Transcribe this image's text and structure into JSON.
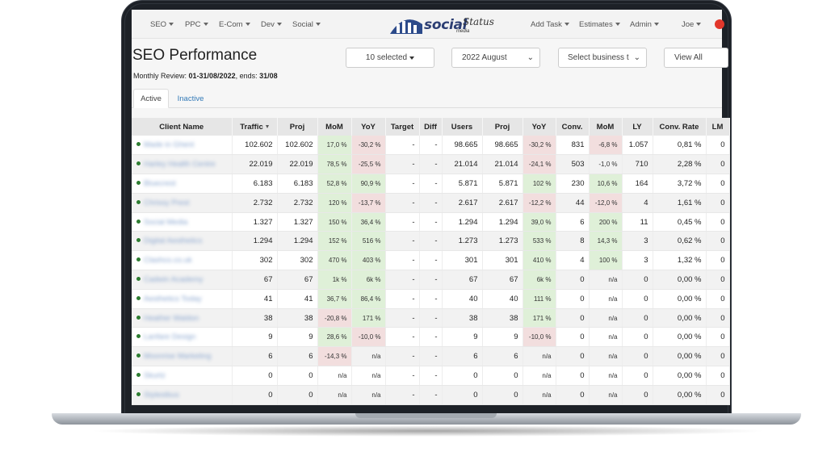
{
  "nav": {
    "left": [
      {
        "label": "SEO"
      },
      {
        "label": "PPC"
      },
      {
        "label": "E-Com"
      },
      {
        "label": "Dev"
      },
      {
        "label": "Social"
      }
    ],
    "right": [
      {
        "label": "Add Task"
      },
      {
        "label": "Estimates"
      },
      {
        "label": "Admin"
      },
      {
        "label": "Joe"
      }
    ],
    "logo": {
      "main": "social",
      "script": "Status",
      "sub": "media"
    }
  },
  "page": {
    "title": "SEO Performance",
    "review_label": "Monthly Review: ",
    "review_range": "01-31/08/2022",
    "ends_label": ", ends: ",
    "ends_value": "31/08"
  },
  "controls": {
    "selected": "10 selected",
    "month": "2022 August",
    "business_placeholder": "Select business t",
    "view_all": "View All"
  },
  "tabs": {
    "active": "Active",
    "inactive": "Inactive"
  },
  "colors": {
    "positive": "#dff0d8",
    "negative": "#f2dede",
    "link": "#337ab7",
    "status_dot": "#2e7d32"
  },
  "table": {
    "headers": {
      "client": "Client Name",
      "traffic": "Traffic",
      "proj": "Proj",
      "mom": "MoM",
      "yoy": "YoY",
      "target": "Target",
      "diff": "Diff",
      "users": "Users",
      "proj2": "Proj",
      "yoy2": "YoY",
      "conv": "Conv.",
      "mom2": "MoM",
      "ly": "LY",
      "conv_rate": "Conv. Rate",
      "lm": "LM"
    },
    "rows": [
      {
        "name": "Made in Ghent",
        "traffic": "102.602",
        "proj": "102.602",
        "mom": "17,0 %",
        "mom_s": "pos",
        "yoy": "-30,2 %",
        "yoy_s": "neg",
        "target": "-",
        "diff": "-",
        "users": "98.665",
        "proj2": "98.665",
        "yoy2": "-30,2 %",
        "yoy2_s": "neg",
        "conv": "831",
        "mom2": "-6,8 %",
        "mom2_s": "neg",
        "ly": "1.057",
        "rate": "0,81 %",
        "lm": "0"
      },
      {
        "name": "Harley Health Centre",
        "traffic": "22.019",
        "proj": "22.019",
        "mom": "78,5 %",
        "mom_s": "pos",
        "yoy": "-25,5 %",
        "yoy_s": "neg",
        "target": "-",
        "diff": "-",
        "users": "21.014",
        "proj2": "21.014",
        "yoy2": "-24,1 %",
        "yoy2_s": "neg",
        "conv": "503",
        "mom2": "-1,0 %",
        "mom2_s": "",
        "ly": "710",
        "rate": "2,28 %",
        "lm": "0"
      },
      {
        "name": "Bluecrest",
        "traffic": "6.183",
        "proj": "6.183",
        "mom": "52,8 %",
        "mom_s": "pos",
        "yoy": "90,9 %",
        "yoy_s": "pos",
        "target": "-",
        "diff": "-",
        "users": "5.871",
        "proj2": "5.871",
        "yoy2": "102 %",
        "yoy2_s": "pos",
        "conv": "230",
        "mom2": "10,6 %",
        "mom2_s": "pos",
        "ly": "164",
        "rate": "3,72 %",
        "lm": "0"
      },
      {
        "name": "Chrissy Prest",
        "traffic": "2.732",
        "proj": "2.732",
        "mom": "120 %",
        "mom_s": "pos",
        "yoy": "-13,7 %",
        "yoy_s": "neg",
        "target": "-",
        "diff": "-",
        "users": "2.617",
        "proj2": "2.617",
        "yoy2": "-12,2 %",
        "yoy2_s": "neg",
        "conv": "44",
        "mom2": "-12,0 %",
        "mom2_s": "neg",
        "ly": "4",
        "rate": "1,61 %",
        "lm": "0"
      },
      {
        "name": "Social Media",
        "traffic": "1.327",
        "proj": "1.327",
        "mom": "150 %",
        "mom_s": "pos",
        "yoy": "36,4 %",
        "yoy_s": "pos",
        "target": "-",
        "diff": "-",
        "users": "1.294",
        "proj2": "1.294",
        "yoy2": "39,0 %",
        "yoy2_s": "pos",
        "conv": "6",
        "mom2": "200 %",
        "mom2_s": "pos",
        "ly": "11",
        "rate": "0,45 %",
        "lm": "0"
      },
      {
        "name": "Digital Aesthetics",
        "traffic": "1.294",
        "proj": "1.294",
        "mom": "152 %",
        "mom_s": "pos",
        "yoy": "516 %",
        "yoy_s": "pos",
        "target": "-",
        "diff": "-",
        "users": "1.273",
        "proj2": "1.273",
        "yoy2": "533 %",
        "yoy2_s": "pos",
        "conv": "8",
        "mom2": "14,3 %",
        "mom2_s": "pos",
        "ly": "3",
        "rate": "0,62 %",
        "lm": "0"
      },
      {
        "name": "Clashco.co.uk",
        "traffic": "302",
        "proj": "302",
        "mom": "470 %",
        "mom_s": "pos",
        "yoy": "403 %",
        "yoy_s": "pos",
        "target": "-",
        "diff": "-",
        "users": "301",
        "proj2": "301",
        "yoy2": "410 %",
        "yoy2_s": "pos",
        "conv": "4",
        "mom2": "100 %",
        "mom2_s": "pos",
        "ly": "3",
        "rate": "1,32 %",
        "lm": "0"
      },
      {
        "name": "Cadwin Academy",
        "traffic": "67",
        "proj": "67",
        "mom": "1k %",
        "mom_s": "pos",
        "yoy": "6k %",
        "yoy_s": "pos",
        "target": "-",
        "diff": "-",
        "users": "67",
        "proj2": "67",
        "yoy2": "6k %",
        "yoy2_s": "pos",
        "conv": "0",
        "mom2": "n/a",
        "mom2_s": "",
        "ly": "0",
        "rate": "0,00 %",
        "lm": "0"
      },
      {
        "name": "Aesthetics Today",
        "traffic": "41",
        "proj": "41",
        "mom": "36,7 %",
        "mom_s": "pos",
        "yoy": "86,4 %",
        "yoy_s": "pos",
        "target": "-",
        "diff": "-",
        "users": "40",
        "proj2": "40",
        "yoy2": "111 %",
        "yoy2_s": "pos",
        "conv": "0",
        "mom2": "n/a",
        "mom2_s": "",
        "ly": "0",
        "rate": "0,00 %",
        "lm": "0"
      },
      {
        "name": "Heather Waldon",
        "traffic": "38",
        "proj": "38",
        "mom": "-20,8 %",
        "mom_s": "neg",
        "yoy": "171 %",
        "yoy_s": "pos",
        "target": "-",
        "diff": "-",
        "users": "38",
        "proj2": "38",
        "yoy2": "171 %",
        "yoy2_s": "pos",
        "conv": "0",
        "mom2": "n/a",
        "mom2_s": "",
        "ly": "0",
        "rate": "0,00 %",
        "lm": "0"
      },
      {
        "name": "Lanfare Design",
        "traffic": "9",
        "proj": "9",
        "mom": "28,6 %",
        "mom_s": "pos",
        "yoy": "-10,0 %",
        "yoy_s": "neg",
        "target": "-",
        "diff": "-",
        "users": "9",
        "proj2": "9",
        "yoy2": "-10,0 %",
        "yoy2_s": "neg",
        "conv": "0",
        "mom2": "n/a",
        "mom2_s": "",
        "ly": "0",
        "rate": "0,00 %",
        "lm": "0"
      },
      {
        "name": "Moonrise Marketing",
        "traffic": "6",
        "proj": "6",
        "mom": "-14,3 %",
        "mom_s": "neg",
        "yoy": "n/a",
        "yoy_s": "",
        "target": "-",
        "diff": "-",
        "users": "6",
        "proj2": "6",
        "yoy2": "n/a",
        "yoy2_s": "",
        "conv": "0",
        "mom2": "n/a",
        "mom2_s": "",
        "ly": "0",
        "rate": "0,00 %",
        "lm": "0"
      },
      {
        "name": "Skurtz",
        "traffic": "0",
        "proj": "0",
        "mom": "n/a",
        "mom_s": "",
        "yoy": "n/a",
        "yoy_s": "",
        "target": "-",
        "diff": "-",
        "users": "0",
        "proj2": "0",
        "yoy2": "n/a",
        "yoy2_s": "",
        "conv": "0",
        "mom2": "n/a",
        "mom2_s": "",
        "ly": "0",
        "rate": "0,00 %",
        "lm": "0"
      },
      {
        "name": "Stylestbus",
        "traffic": "0",
        "proj": "0",
        "mom": "n/a",
        "mom_s": "",
        "yoy": "n/a",
        "yoy_s": "",
        "target": "-",
        "diff": "-",
        "users": "0",
        "proj2": "0",
        "yoy2": "n/a",
        "yoy2_s": "",
        "conv": "0",
        "mom2": "n/a",
        "mom2_s": "",
        "ly": "0",
        "rate": "0,00 %",
        "lm": "0"
      }
    ]
  }
}
